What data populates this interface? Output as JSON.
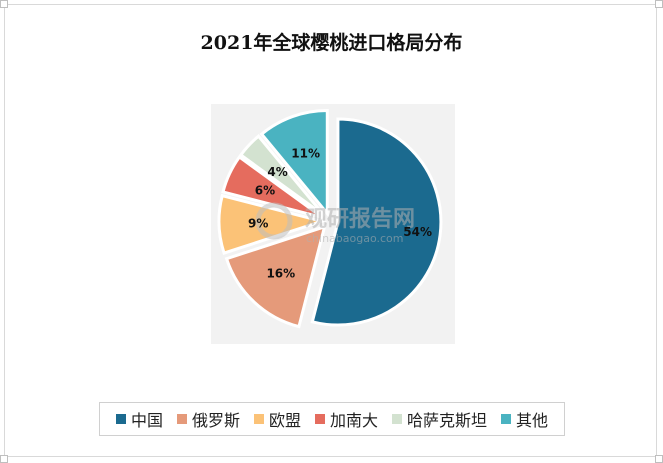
{
  "chart_data": {
    "type": "pie",
    "title": "2021年全球樱桃进口格局分布",
    "categories": [
      "中国",
      "俄罗斯",
      "欧盟",
      "加南大",
      "哈萨克斯坦",
      "其他"
    ],
    "values": [
      54,
      16,
      9,
      6,
      4,
      11
    ],
    "labels": [
      "54%",
      "16%",
      "9%",
      "6%",
      "4%",
      "11%"
    ],
    "colors": [
      "#1b6a8f",
      "#e59a7a",
      "#fbc277",
      "#e56c5e",
      "#d3e2d0",
      "#4ab3c1"
    ],
    "exploded": true,
    "legend_position": "bottom"
  },
  "watermark": {
    "text": "观研报告网",
    "sub": "chinabaogao.com"
  }
}
